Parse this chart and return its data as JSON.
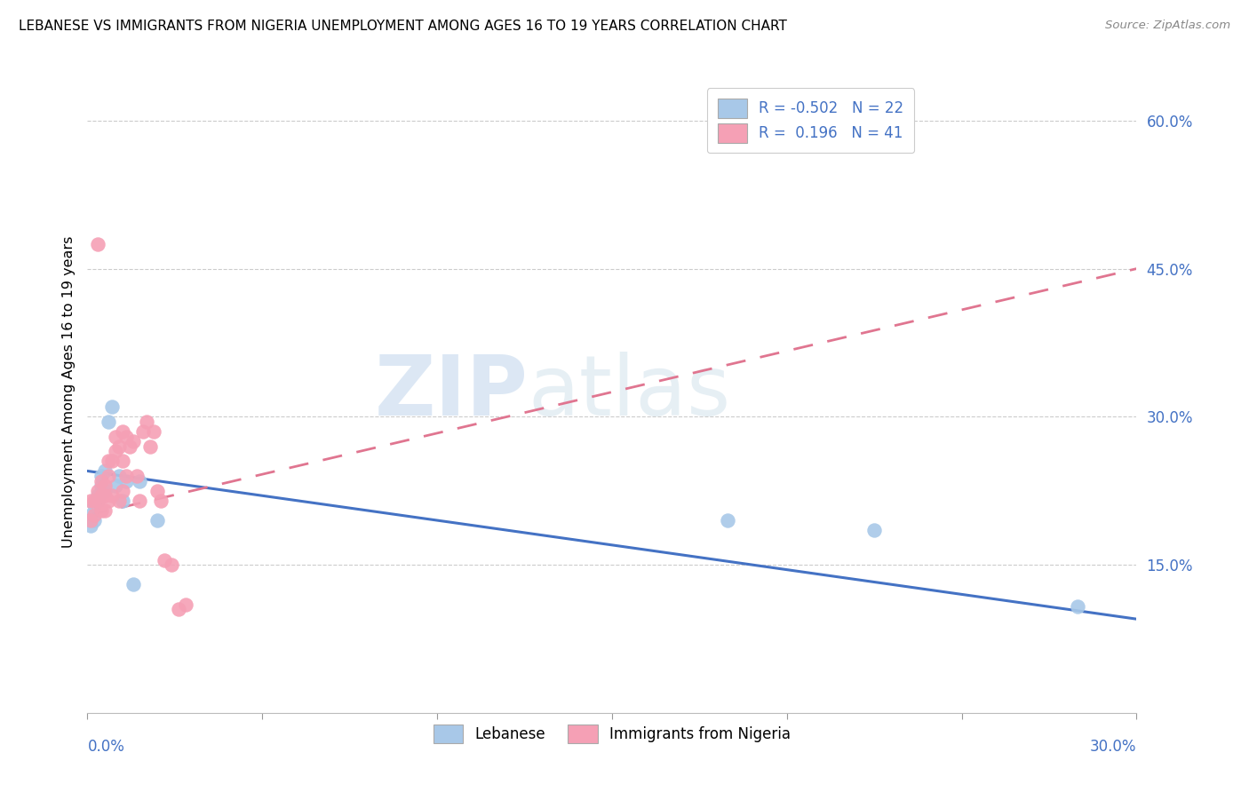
{
  "title": "LEBANESE VS IMMIGRANTS FROM NIGERIA UNEMPLOYMENT AMONG AGES 16 TO 19 YEARS CORRELATION CHART",
  "source": "Source: ZipAtlas.com",
  "ylabel": "Unemployment Among Ages 16 to 19 years",
  "legend_top_1": "R = -0.502   N = 22",
  "legend_top_2": "R =  0.196   N = 41",
  "legend_bottom": [
    "Lebanese",
    "Immigrants from Nigeria"
  ],
  "watermark_zip": "ZIP",
  "watermark_atlas": "atlas",
  "blue_scatter_color": "#a8c8e8",
  "pink_scatter_color": "#f5a0b5",
  "blue_line_color": "#4472c4",
  "pink_line_color": "#e07590",
  "xlim": [
    0.0,
    0.3
  ],
  "ylim": [
    0.0,
    0.65
  ],
  "right_yticks": [
    0.15,
    0.3,
    0.45,
    0.6
  ],
  "right_ytick_labels": [
    "15.0%",
    "30.0%",
    "45.0%",
    "60.0%"
  ],
  "leb_x": [
    0.001,
    0.001,
    0.002,
    0.002,
    0.003,
    0.003,
    0.004,
    0.004,
    0.005,
    0.005,
    0.006,
    0.007,
    0.008,
    0.009,
    0.01,
    0.011,
    0.013,
    0.015,
    0.02,
    0.183,
    0.225,
    0.283
  ],
  "leb_y": [
    0.19,
    0.2,
    0.195,
    0.21,
    0.215,
    0.22,
    0.23,
    0.24,
    0.225,
    0.245,
    0.295,
    0.31,
    0.23,
    0.24,
    0.215,
    0.235,
    0.13,
    0.235,
    0.195,
    0.195,
    0.185,
    0.108
  ],
  "nig_x": [
    0.001,
    0.001,
    0.002,
    0.002,
    0.003,
    0.003,
    0.003,
    0.004,
    0.004,
    0.004,
    0.005,
    0.005,
    0.005,
    0.006,
    0.006,
    0.006,
    0.007,
    0.007,
    0.008,
    0.008,
    0.009,
    0.009,
    0.01,
    0.01,
    0.01,
    0.011,
    0.011,
    0.012,
    0.013,
    0.014,
    0.015,
    0.016,
    0.017,
    0.018,
    0.019,
    0.02,
    0.021,
    0.022,
    0.024,
    0.026,
    0.028
  ],
  "nig_y": [
    0.195,
    0.215,
    0.2,
    0.215,
    0.475,
    0.215,
    0.225,
    0.205,
    0.22,
    0.235,
    0.205,
    0.22,
    0.23,
    0.215,
    0.24,
    0.255,
    0.22,
    0.255,
    0.265,
    0.28,
    0.215,
    0.27,
    0.225,
    0.255,
    0.285,
    0.24,
    0.28,
    0.27,
    0.275,
    0.24,
    0.215,
    0.285,
    0.295,
    0.27,
    0.285,
    0.225,
    0.215,
    0.155,
    0.15,
    0.105,
    0.11
  ],
  "blue_line_x0": 0.0,
  "blue_line_x1": 0.3,
  "blue_line_y0": 0.245,
  "blue_line_y1": 0.095,
  "pink_line_x0": 0.0,
  "pink_line_x1": 0.3,
  "pink_line_y0": 0.2,
  "pink_line_y1": 0.45
}
